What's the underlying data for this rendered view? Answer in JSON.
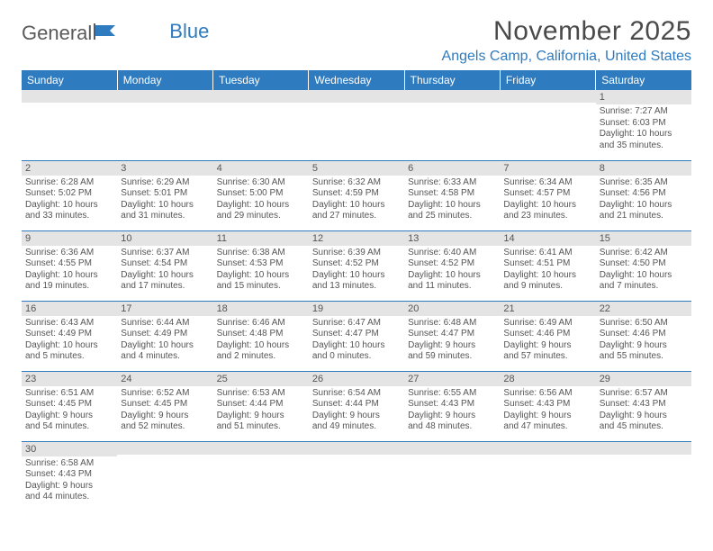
{
  "logo": {
    "text1": "General",
    "text2": "Blue"
  },
  "title": "November 2025",
  "location": "Angels Camp, California, United States",
  "colors": {
    "header_bg": "#2f7bbf",
    "header_text": "#ffffff",
    "daynum_bg": "#e4e4e4",
    "border": "#2f7bbf",
    "title_color": "#4a4a4a",
    "location_color": "#2f7bbf"
  },
  "weekdays": [
    "Sunday",
    "Monday",
    "Tuesday",
    "Wednesday",
    "Thursday",
    "Friday",
    "Saturday"
  ],
  "weeks": [
    [
      {
        "n": "",
        "lines": []
      },
      {
        "n": "",
        "lines": []
      },
      {
        "n": "",
        "lines": []
      },
      {
        "n": "",
        "lines": []
      },
      {
        "n": "",
        "lines": []
      },
      {
        "n": "",
        "lines": []
      },
      {
        "n": "1",
        "lines": [
          "Sunrise: 7:27 AM",
          "Sunset: 6:03 PM",
          "Daylight: 10 hours",
          "and 35 minutes."
        ]
      }
    ],
    [
      {
        "n": "2",
        "lines": [
          "Sunrise: 6:28 AM",
          "Sunset: 5:02 PM",
          "Daylight: 10 hours",
          "and 33 minutes."
        ]
      },
      {
        "n": "3",
        "lines": [
          "Sunrise: 6:29 AM",
          "Sunset: 5:01 PM",
          "Daylight: 10 hours",
          "and 31 minutes."
        ]
      },
      {
        "n": "4",
        "lines": [
          "Sunrise: 6:30 AM",
          "Sunset: 5:00 PM",
          "Daylight: 10 hours",
          "and 29 minutes."
        ]
      },
      {
        "n": "5",
        "lines": [
          "Sunrise: 6:32 AM",
          "Sunset: 4:59 PM",
          "Daylight: 10 hours",
          "and 27 minutes."
        ]
      },
      {
        "n": "6",
        "lines": [
          "Sunrise: 6:33 AM",
          "Sunset: 4:58 PM",
          "Daylight: 10 hours",
          "and 25 minutes."
        ]
      },
      {
        "n": "7",
        "lines": [
          "Sunrise: 6:34 AM",
          "Sunset: 4:57 PM",
          "Daylight: 10 hours",
          "and 23 minutes."
        ]
      },
      {
        "n": "8",
        "lines": [
          "Sunrise: 6:35 AM",
          "Sunset: 4:56 PM",
          "Daylight: 10 hours",
          "and 21 minutes."
        ]
      }
    ],
    [
      {
        "n": "9",
        "lines": [
          "Sunrise: 6:36 AM",
          "Sunset: 4:55 PM",
          "Daylight: 10 hours",
          "and 19 minutes."
        ]
      },
      {
        "n": "10",
        "lines": [
          "Sunrise: 6:37 AM",
          "Sunset: 4:54 PM",
          "Daylight: 10 hours",
          "and 17 minutes."
        ]
      },
      {
        "n": "11",
        "lines": [
          "Sunrise: 6:38 AM",
          "Sunset: 4:53 PM",
          "Daylight: 10 hours",
          "and 15 minutes."
        ]
      },
      {
        "n": "12",
        "lines": [
          "Sunrise: 6:39 AM",
          "Sunset: 4:52 PM",
          "Daylight: 10 hours",
          "and 13 minutes."
        ]
      },
      {
        "n": "13",
        "lines": [
          "Sunrise: 6:40 AM",
          "Sunset: 4:52 PM",
          "Daylight: 10 hours",
          "and 11 minutes."
        ]
      },
      {
        "n": "14",
        "lines": [
          "Sunrise: 6:41 AM",
          "Sunset: 4:51 PM",
          "Daylight: 10 hours",
          "and 9 minutes."
        ]
      },
      {
        "n": "15",
        "lines": [
          "Sunrise: 6:42 AM",
          "Sunset: 4:50 PM",
          "Daylight: 10 hours",
          "and 7 minutes."
        ]
      }
    ],
    [
      {
        "n": "16",
        "lines": [
          "Sunrise: 6:43 AM",
          "Sunset: 4:49 PM",
          "Daylight: 10 hours",
          "and 5 minutes."
        ]
      },
      {
        "n": "17",
        "lines": [
          "Sunrise: 6:44 AM",
          "Sunset: 4:49 PM",
          "Daylight: 10 hours",
          "and 4 minutes."
        ]
      },
      {
        "n": "18",
        "lines": [
          "Sunrise: 6:46 AM",
          "Sunset: 4:48 PM",
          "Daylight: 10 hours",
          "and 2 minutes."
        ]
      },
      {
        "n": "19",
        "lines": [
          "Sunrise: 6:47 AM",
          "Sunset: 4:47 PM",
          "Daylight: 10 hours",
          "and 0 minutes."
        ]
      },
      {
        "n": "20",
        "lines": [
          "Sunrise: 6:48 AM",
          "Sunset: 4:47 PM",
          "Daylight: 9 hours",
          "and 59 minutes."
        ]
      },
      {
        "n": "21",
        "lines": [
          "Sunrise: 6:49 AM",
          "Sunset: 4:46 PM",
          "Daylight: 9 hours",
          "and 57 minutes."
        ]
      },
      {
        "n": "22",
        "lines": [
          "Sunrise: 6:50 AM",
          "Sunset: 4:46 PM",
          "Daylight: 9 hours",
          "and 55 minutes."
        ]
      }
    ],
    [
      {
        "n": "23",
        "lines": [
          "Sunrise: 6:51 AM",
          "Sunset: 4:45 PM",
          "Daylight: 9 hours",
          "and 54 minutes."
        ]
      },
      {
        "n": "24",
        "lines": [
          "Sunrise: 6:52 AM",
          "Sunset: 4:45 PM",
          "Daylight: 9 hours",
          "and 52 minutes."
        ]
      },
      {
        "n": "25",
        "lines": [
          "Sunrise: 6:53 AM",
          "Sunset: 4:44 PM",
          "Daylight: 9 hours",
          "and 51 minutes."
        ]
      },
      {
        "n": "26",
        "lines": [
          "Sunrise: 6:54 AM",
          "Sunset: 4:44 PM",
          "Daylight: 9 hours",
          "and 49 minutes."
        ]
      },
      {
        "n": "27",
        "lines": [
          "Sunrise: 6:55 AM",
          "Sunset: 4:43 PM",
          "Daylight: 9 hours",
          "and 48 minutes."
        ]
      },
      {
        "n": "28",
        "lines": [
          "Sunrise: 6:56 AM",
          "Sunset: 4:43 PM",
          "Daylight: 9 hours",
          "and 47 minutes."
        ]
      },
      {
        "n": "29",
        "lines": [
          "Sunrise: 6:57 AM",
          "Sunset: 4:43 PM",
          "Daylight: 9 hours",
          "and 45 minutes."
        ]
      }
    ],
    [
      {
        "n": "30",
        "lines": [
          "Sunrise: 6:58 AM",
          "Sunset: 4:43 PM",
          "Daylight: 9 hours",
          "and 44 minutes."
        ]
      },
      {
        "n": "",
        "lines": []
      },
      {
        "n": "",
        "lines": []
      },
      {
        "n": "",
        "lines": []
      },
      {
        "n": "",
        "lines": []
      },
      {
        "n": "",
        "lines": []
      },
      {
        "n": "",
        "lines": []
      }
    ]
  ]
}
